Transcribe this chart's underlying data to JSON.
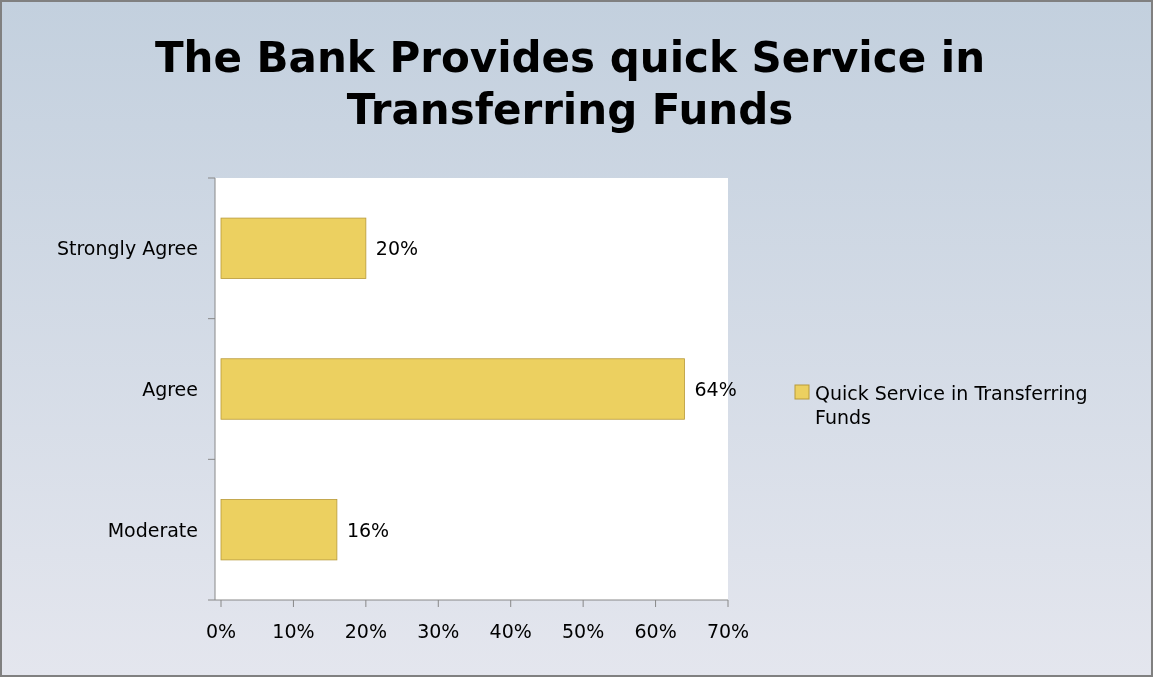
{
  "chart_data": {
    "type": "bar",
    "orientation": "horizontal",
    "title": "The Bank Provides quick Service in Transferring Funds",
    "categories": [
      "Strongly Agree",
      "Agree",
      "Moderate"
    ],
    "series": [
      {
        "name": "Quick Service in Transferring Funds",
        "color": "#ecd060",
        "values": [
          20,
          64,
          16
        ],
        "value_labels": [
          "20%",
          "64%",
          "16%"
        ]
      }
    ],
    "xlim": [
      0,
      70
    ],
    "xticks": [
      {
        "value": 0,
        "label": "0%"
      },
      {
        "value": 10,
        "label": "10%"
      },
      {
        "value": 20,
        "label": "20%"
      },
      {
        "value": 30,
        "label": "30%"
      },
      {
        "value": 40,
        "label": "40%"
      },
      {
        "value": 50,
        "label": "50%"
      },
      {
        "value": 60,
        "label": "60%"
      },
      {
        "value": 70,
        "label": "70%"
      }
    ],
    "grid": false,
    "legend": "right"
  }
}
